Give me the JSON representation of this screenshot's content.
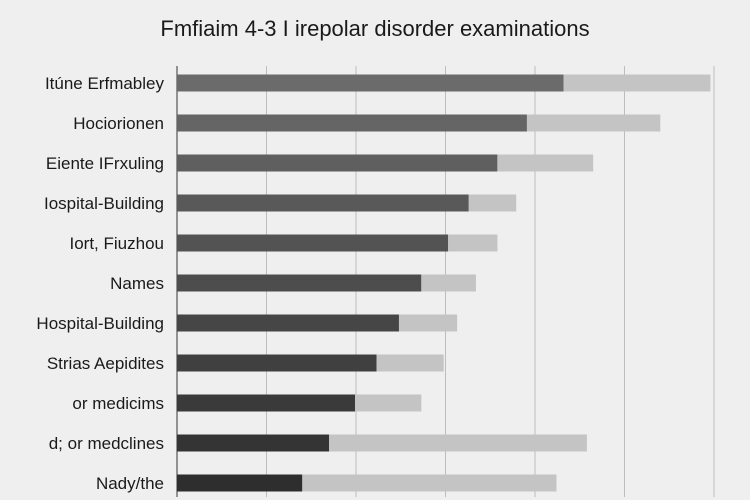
{
  "chart_data": {
    "type": "bar",
    "orientation": "horizontal",
    "stacked": true,
    "title": "Fmfiaim 4-3 I irepolar disorder examinations",
    "xlabel": "",
    "ylabel": "",
    "xlim": [
      0,
      6
    ],
    "x_grid": true,
    "legend": "none",
    "categories": [
      "Itúne Erfmabley",
      "Hociorionen",
      "Eiente IFrxuling",
      "Iospital-Building",
      "Iort, Fiuzhou",
      "Names",
      "Hospital-Building",
      "Strias Aepidites",
      "or medicims",
      "d; or medclines",
      "Nady/the"
    ],
    "series": [
      {
        "color": "#6b6b6b",
        "end_color": "#2e2e2e",
        "values": [
          4.32,
          3.91,
          3.58,
          3.26,
          3.03,
          2.73,
          2.48,
          2.23,
          1.99,
          1.7,
          1.4
        ]
      },
      {
        "color": "#c4c4c4",
        "values": [
          1.64,
          1.49,
          1.07,
          0.53,
          0.55,
          0.61,
          0.65,
          0.75,
          0.74,
          2.88,
          2.84
        ]
      }
    ]
  }
}
